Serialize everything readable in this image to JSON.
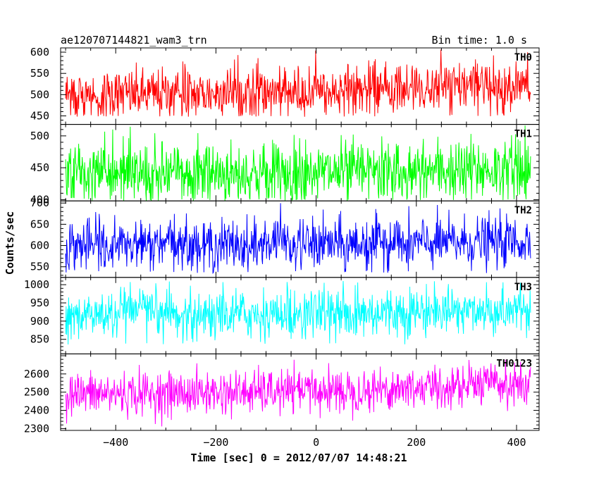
{
  "header": {
    "title": "ae120707144821_wam3_trn",
    "bin_time": "Bin time: 1.0 s"
  },
  "chart_data": {
    "type": "line",
    "title": "ae120707144821_wam3_trn",
    "subtitle": "Bin time: 1.0 s",
    "xlabel": "Time [sec] 0 = 2012/07/07 14:48:21",
    "ylabel": "Counts/sec",
    "xlim": [
      -510,
      445
    ],
    "x_ticks": [
      -400,
      -200,
      0,
      200,
      400
    ],
    "x_range_data": [
      -500,
      428
    ],
    "bin_time_s": 1.0,
    "panels": [
      {
        "name": "TH0",
        "color": "#ff0000",
        "ylim": [
          430,
          610
        ],
        "y_ticks": [
          450,
          500,
          550,
          600
        ],
        "approx_mean_start": 500,
        "approx_mean_end": 525,
        "approx_amplitude": 30,
        "approx_min": 448,
        "approx_max": 610
      },
      {
        "name": "TH1",
        "color": "#00ff00",
        "ylim": [
          398,
          518
        ],
        "y_ticks": [
          400,
          450,
          500
        ],
        "approx_mean_start": 440,
        "approx_mean_end": 448,
        "approx_amplitude": 25,
        "approx_min": 398,
        "approx_max": 518
      },
      {
        "name": "TH2",
        "color": "#0000ff",
        "ylim": [
          525,
          705
        ],
        "y_ticks": [
          550,
          600,
          650,
          700
        ],
        "approx_mean_start": 600,
        "approx_mean_end": 610,
        "approx_amplitude": 30,
        "approx_min": 535,
        "approx_max": 700
      },
      {
        "name": "TH3",
        "color": "#00ffff",
        "ylim": [
          810,
          1020
        ],
        "y_ticks": [
          850,
          900,
          950,
          1000
        ],
        "approx_mean_start": 915,
        "approx_mean_end": 935,
        "approx_amplitude": 35,
        "approx_min": 835,
        "approx_max": 1010
      },
      {
        "name": "TH0123",
        "color": "#ff00ff",
        "ylim": [
          2290,
          2710
        ],
        "y_ticks": [
          2300,
          2400,
          2500,
          2600
        ],
        "approx_mean_start": 2490,
        "approx_mean_end": 2550,
        "approx_amplitude": 60,
        "approx_min": 2300,
        "approx_max": 2680
      }
    ]
  }
}
